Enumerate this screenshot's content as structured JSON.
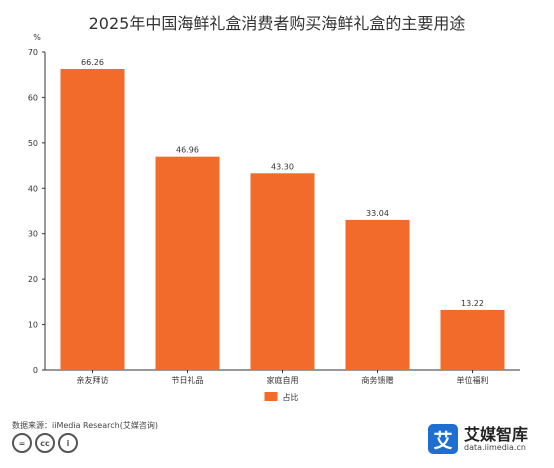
{
  "chart_data": {
    "type": "bar",
    "title": "2025年中国海鲜礼盒消费者购买海鲜礼盒的主要用途",
    "ylabel": "%",
    "ylim": [
      0,
      70
    ],
    "yticks": [
      "0",
      "10",
      "20",
      "30",
      "40",
      "50",
      "60",
      "70"
    ],
    "categories": [
      "亲友拜访",
      "节日礼品",
      "家庭自用",
      "商务馈赠",
      "单位福利"
    ],
    "series": [
      {
        "name": "占比",
        "values": [
          66.26,
          46.96,
          43.3,
          33.04,
          13.22
        ],
        "labels": [
          "66.26",
          "46.96",
          "43.30",
          "33.04",
          "13.22"
        ]
      }
    ],
    "grid": false,
    "legend": "bottom-center",
    "color": "#f26b2a"
  },
  "footer": {
    "source": "数据来源：iiMedia Research(艾媒咨询)",
    "cc_icons": [
      "cc-icon",
      "cc-attribution-icon",
      "cc-person-icon"
    ]
  },
  "brand": {
    "logo_char": "艾",
    "name": "艾媒智库",
    "url": "data.iimedia.cn",
    "color": "#1f6fd0"
  }
}
